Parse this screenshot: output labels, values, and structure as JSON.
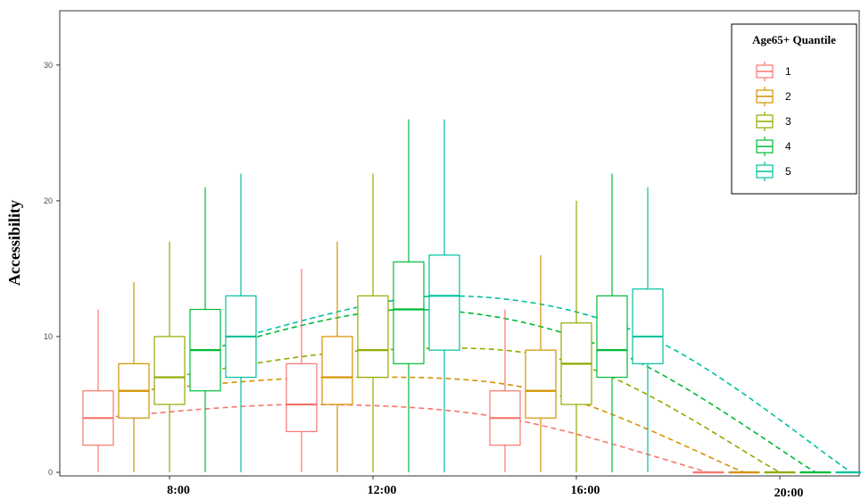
{
  "chart_data": {
    "type": "boxplot",
    "title": "",
    "xlabel": "",
    "ylabel": "Accessibility",
    "ylim": [
      0,
      34
    ],
    "y_ticks": [
      "0",
      "10",
      "20",
      "30"
    ],
    "categories": [
      "8:00",
      "12:00",
      "16:00",
      "20:00"
    ],
    "grid": false,
    "legend": {
      "title": "Age65+ Quantile",
      "placement": "top-right",
      "entries": [
        "1",
        "2",
        "3",
        "4",
        "5"
      ]
    },
    "colors": [
      "#F8766D",
      "#D39200",
      "#93AA00",
      "#00BA38",
      "#00C19F"
    ],
    "series": [
      {
        "name": "1",
        "boxes": [
          {
            "min": 0,
            "q1": 2,
            "median": 4,
            "q3": 6,
            "max": 12
          },
          {
            "min": 0,
            "q1": 3,
            "median": 5,
            "q3": 8,
            "max": 15
          },
          {
            "min": 0,
            "q1": 2,
            "median": 4,
            "q3": 6,
            "max": 12
          },
          {
            "min": 0,
            "q1": 0,
            "median": 0,
            "q3": 0,
            "max": 0
          }
        ]
      },
      {
        "name": "2",
        "boxes": [
          {
            "min": 0,
            "q1": 4,
            "median": 6,
            "q3": 8,
            "max": 14
          },
          {
            "min": 0,
            "q1": 5,
            "median": 7,
            "q3": 10,
            "max": 17
          },
          {
            "min": 0,
            "q1": 4,
            "median": 6,
            "q3": 9,
            "max": 16
          },
          {
            "min": 0,
            "q1": 0,
            "median": 0,
            "q3": 0,
            "max": 0
          }
        ]
      },
      {
        "name": "3",
        "boxes": [
          {
            "min": 0,
            "q1": 5,
            "median": 7,
            "q3": 10,
            "max": 17
          },
          {
            "min": 0,
            "q1": 7,
            "median": 9,
            "q3": 13,
            "max": 22
          },
          {
            "min": 0,
            "q1": 5,
            "median": 8,
            "q3": 11,
            "max": 20
          },
          {
            "min": 0,
            "q1": 0,
            "median": 0,
            "q3": 0,
            "max": 0
          }
        ]
      },
      {
        "name": "4",
        "boxes": [
          {
            "min": 0,
            "q1": 6,
            "median": 9,
            "q3": 12,
            "max": 21
          },
          {
            "min": 0,
            "q1": 8,
            "median": 12,
            "q3": 15.5,
            "max": 26
          },
          {
            "min": 0,
            "q1": 7,
            "median": 9,
            "q3": 13,
            "max": 22
          },
          {
            "min": 0,
            "q1": 0,
            "median": 0,
            "q3": 0,
            "max": 0
          }
        ]
      },
      {
        "name": "5",
        "boxes": [
          {
            "min": 0,
            "q1": 7,
            "median": 10,
            "q3": 13,
            "max": 22
          },
          {
            "min": 0,
            "q1": 9,
            "median": 13,
            "q3": 16,
            "max": 26
          },
          {
            "min": 0,
            "q1": 8,
            "median": 10,
            "q3": 13.5,
            "max": 21
          },
          {
            "min": 0,
            "q1": 0,
            "median": 0,
            "q3": 0,
            "max": 0
          }
        ]
      }
    ]
  }
}
